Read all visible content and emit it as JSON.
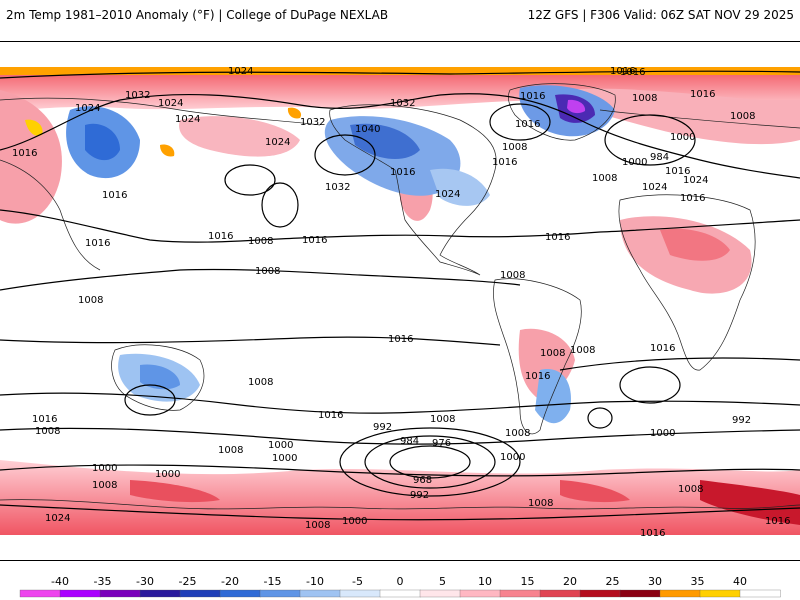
{
  "header": {
    "title": "2m Temp 1981–2010 Anomaly (°F) | College of DuPage NEXLAB",
    "run_info": "12Z GFS | F306 Valid: 06Z SAT NOV 29 2025"
  },
  "pressure_labels": [
    {
      "text": "1024"
    },
    {
      "text": "1016"
    },
    {
      "text": "1032"
    },
    {
      "text": "1024"
    },
    {
      "text": "1032"
    },
    {
      "text": "1008"
    },
    {
      "text": "1016"
    },
    {
      "text": "1024"
    },
    {
      "text": "1016"
    },
    {
      "text": "1024"
    },
    {
      "text": "1024"
    },
    {
      "text": "1032"
    },
    {
      "text": "1040"
    },
    {
      "text": "1016"
    },
    {
      "text": "1016"
    },
    {
      "text": "1032"
    },
    {
      "text": "1016"
    },
    {
      "text": "1024"
    },
    {
      "text": "1016"
    },
    {
      "text": "1008"
    },
    {
      "text": "1016"
    },
    {
      "text": "1016"
    },
    {
      "text": "1008"
    },
    {
      "text": "1008"
    },
    {
      "text": "1000"
    },
    {
      "text": "984"
    },
    {
      "text": "1016"
    },
    {
      "text": "1024"
    },
    {
      "text": "1024"
    },
    {
      "text": "1016"
    },
    {
      "text": "1000"
    },
    {
      "text": "1016"
    },
    {
      "text": "1016"
    },
    {
      "text": "1016"
    },
    {
      "text": "1008"
    },
    {
      "text": "1008"
    },
    {
      "text": "1016"
    },
    {
      "text": "1008"
    },
    {
      "text": "1008"
    },
    {
      "text": "1008"
    },
    {
      "text": "1016"
    },
    {
      "text": "1008"
    },
    {
      "text": "1016"
    },
    {
      "text": "1008"
    },
    {
      "text": "1016"
    },
    {
      "text": "1008"
    },
    {
      "text": "1016"
    },
    {
      "text": "1008"
    },
    {
      "text": "1016"
    },
    {
      "text": "1008"
    },
    {
      "text": "992"
    },
    {
      "text": "984"
    },
    {
      "text": "976"
    },
    {
      "text": "1000"
    },
    {
      "text": "1000"
    },
    {
      "text": "1008"
    },
    {
      "text": "1000"
    },
    {
      "text": "1000"
    },
    {
      "text": "992"
    },
    {
      "text": "1000"
    },
    {
      "text": "1000"
    },
    {
      "text": "968"
    },
    {
      "text": "992"
    },
    {
      "text": "1008"
    },
    {
      "text": "1008"
    },
    {
      "text": "1008"
    },
    {
      "text": "1024"
    },
    {
      "text": "1000"
    },
    {
      "text": "1008"
    },
    {
      "text": "1016"
    },
    {
      "text": "1016"
    }
  ],
  "colorbar": {
    "ticks": [
      "-40",
      "-35",
      "-30",
      "-25",
      "-20",
      "-15",
      "-10",
      "-5",
      "0",
      "5",
      "10",
      "15",
      "20",
      "25",
      "30",
      "35",
      "40"
    ],
    "colors": [
      "#ee44ee",
      "#aa00ff",
      "#7a00bb",
      "#2a1a9c",
      "#1f3fb8",
      "#2f6bd6",
      "#5f95e6",
      "#9fc3f2",
      "#d8e8fb",
      "#ffffff",
      "#ffe6ea",
      "#ffb7c2",
      "#f7838f",
      "#e04453",
      "#b40d1e",
      "#8a0012",
      "#ff9a00",
      "#ffd000",
      "#ffffff"
    ]
  }
}
